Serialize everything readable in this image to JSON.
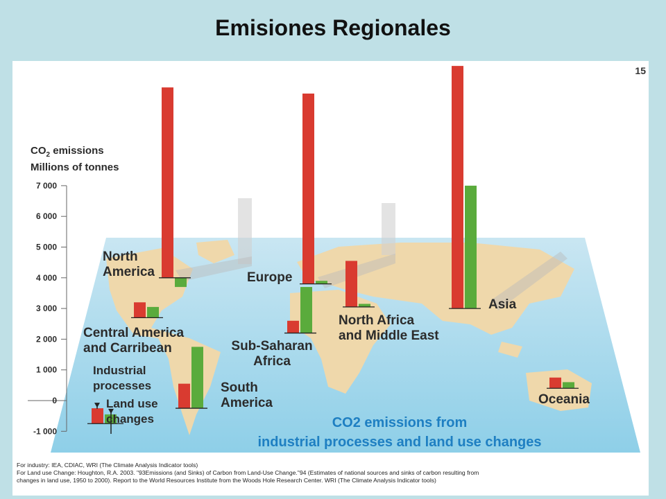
{
  "slide": {
    "title": "Emisiones Regionales",
    "page_number": "15"
  },
  "chart_data": {
    "type": "bar",
    "title": "CO2 emissions from industrial processes and land use changes",
    "ylabel_line1": "CO2 emissions",
    "ylabel_line2": "Millions of tonnes",
    "ylim": [
      -1000,
      7000
    ],
    "yticks": [
      "7 000",
      "6 000",
      "5 000",
      "4 000",
      "3 000",
      "2 000",
      "1 000",
      "0",
      "-1 000"
    ],
    "ytick_values": [
      7000,
      6000,
      5000,
      4000,
      3000,
      2000,
      1000,
      0,
      -1000
    ],
    "colors": {
      "industrial": "#d93b30",
      "land_use": "#5aab3c"
    },
    "legend": {
      "industrial": "Industrial processes",
      "land_use": "Land use changes"
    },
    "legend_values": {
      "industrial": -500,
      "land_use": -300
    },
    "regions": [
      {
        "name_lines": [
          "North",
          "America"
        ],
        "industrial": 6200,
        "land_use": -300
      },
      {
        "name_lines": [
          "Central America",
          "and Carribean"
        ],
        "industrial": 500,
        "land_use": 350
      },
      {
        "name_lines": [
          "South",
          "America"
        ],
        "industrial": 800,
        "land_use": 2000
      },
      {
        "name_lines": [
          "Europe"
        ],
        "industrial": 6200,
        "land_use": 100
      },
      {
        "name_lines": [
          "Sub-Saharan",
          "Africa"
        ],
        "industrial": 400,
        "land_use": 1500
      },
      {
        "name_lines": [
          "North Africa",
          "and Middle East"
        ],
        "industrial": 1500,
        "land_use": 100
      },
      {
        "name_lines": [
          "Asia"
        ],
        "industrial": 7900,
        "land_use": 4000
      },
      {
        "name_lines": [
          "Oceania"
        ],
        "industrial": 350,
        "land_use": 200
      }
    ]
  },
  "footnotes": [
    "For industry: IEA, CDIAC, WRI (The Climate Analysis Indicator tools)",
    "For Land use Change: Houghton, R.A. 2003. \"93Emissions (and Sinks) of Carbon from Land-Use Change.\"94 (Estimates of national sources and sinks of carbon resulting from",
    "changes in land use, 1950 to 2000). Report to the World Resources Institute from the Woods Hole Research Center. WRI (The Climate Analysis Indicator tools)"
  ]
}
